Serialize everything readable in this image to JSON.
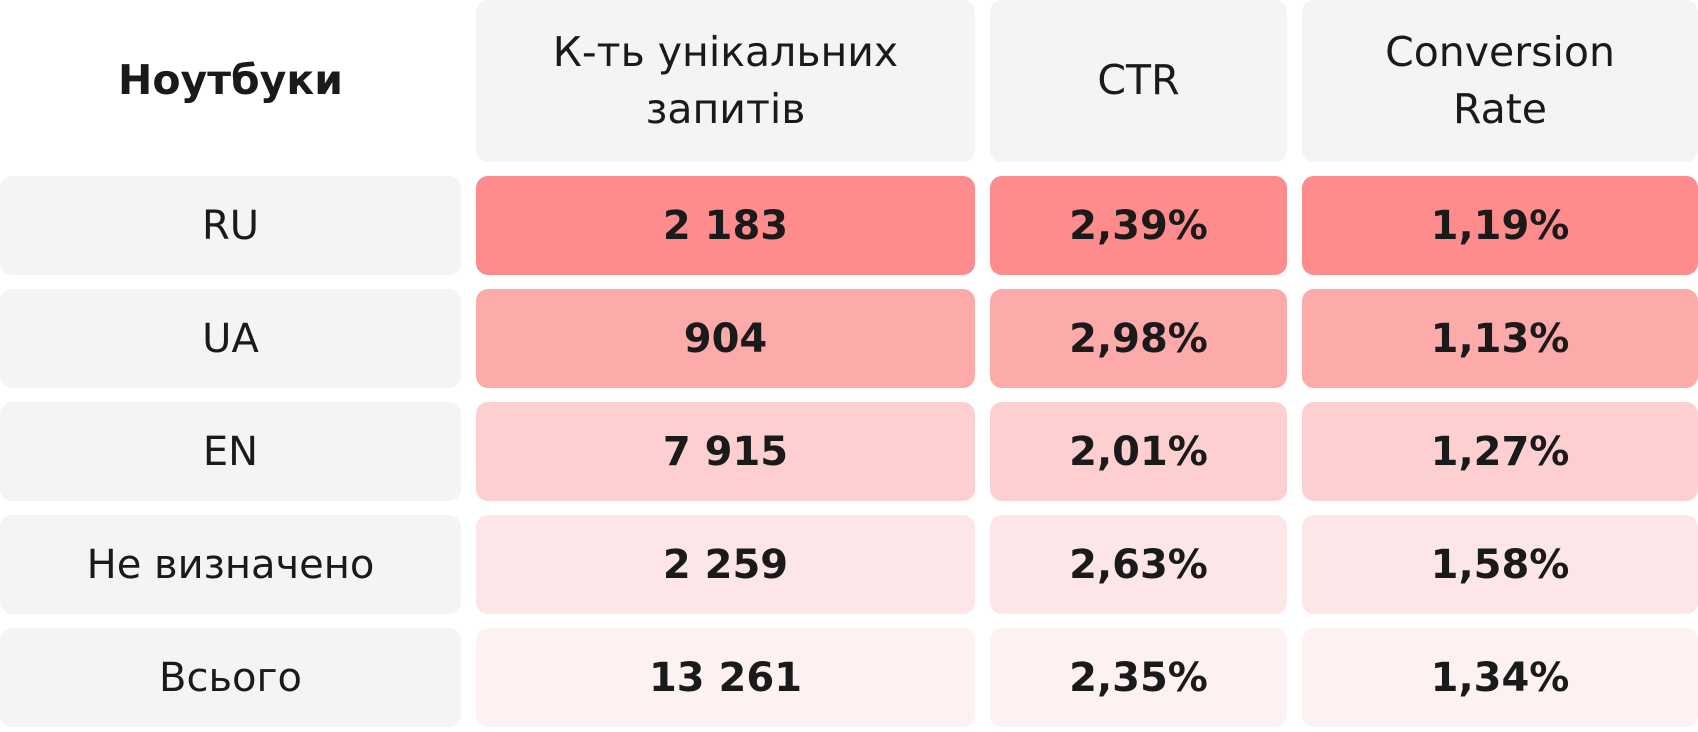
{
  "table": {
    "header": [
      "Ноутбуки",
      "К-ть унікальних запитів",
      "CTR",
      "Conversion Rate"
    ],
    "rows": [
      [
        "RU",
        "2 183",
        "2,39%",
        "1,19%"
      ],
      [
        "UA",
        "904",
        "2,98%",
        "1,13%"
      ],
      [
        "EN",
        "7 915",
        "2,01%",
        "1,27%"
      ],
      [
        "Не визначено",
        "2 259",
        "2,63%",
        "1,58%"
      ],
      [
        "Всього",
        "13 261",
        "2,35%",
        "1,34%"
      ]
    ]
  }
}
